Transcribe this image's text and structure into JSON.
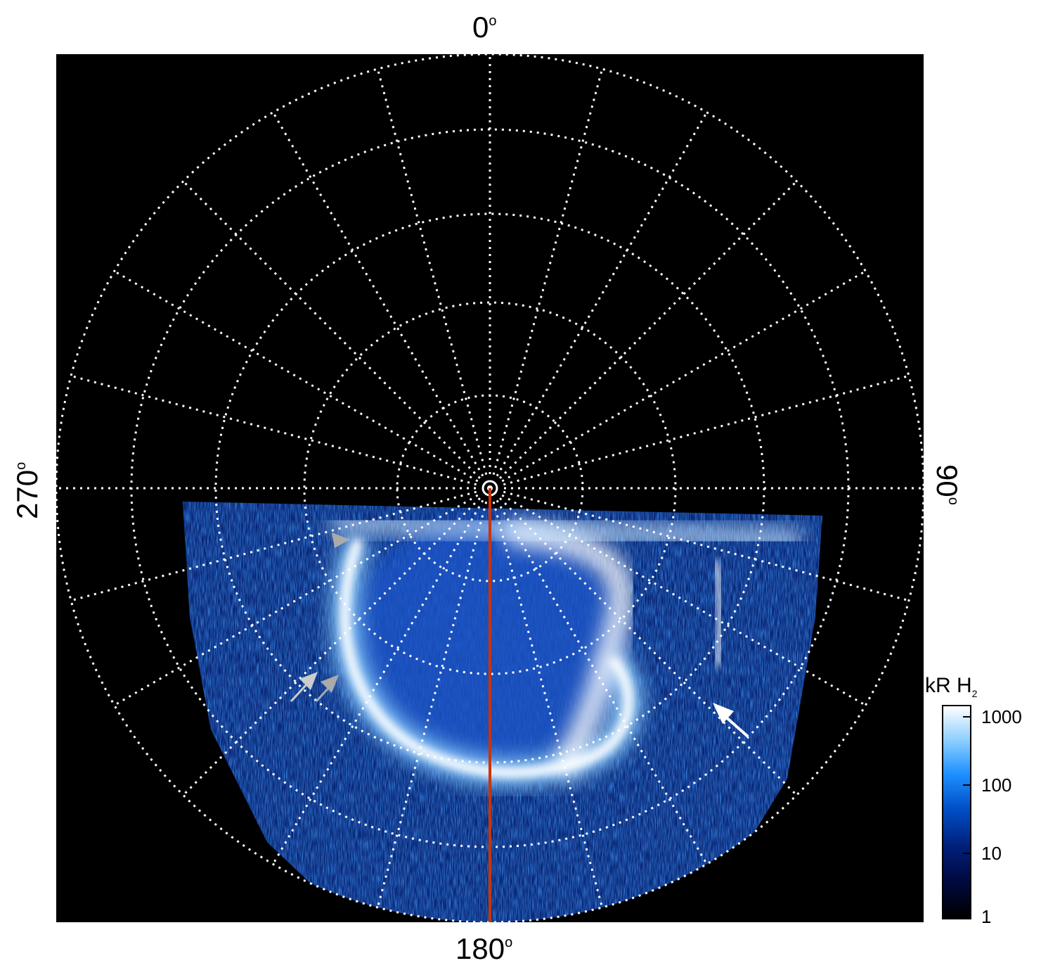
{
  "labels": {
    "top": "0",
    "bottom": "180",
    "left": "270",
    "right": "90",
    "degree_symbol": "o"
  },
  "colorbar": {
    "title": "kR H",
    "title_subscript": "2",
    "ticks": [
      "1000",
      "100",
      "10",
      "1"
    ]
  },
  "colors": {
    "background": "#000000",
    "grid": "#ffffff",
    "meridian_line": "#cc3300",
    "aurora_bright": "#ffffff",
    "aurora_mid": "#1e90ff",
    "aurora_dim": "#00207a",
    "arrow_white": "#ffffff",
    "arrow_gray": "#aaaaaa"
  },
  "annotations": {
    "arrows": [
      "gray-arrowhead",
      "gray-arrow",
      "gray-arrow",
      "white-arrow"
    ]
  }
}
